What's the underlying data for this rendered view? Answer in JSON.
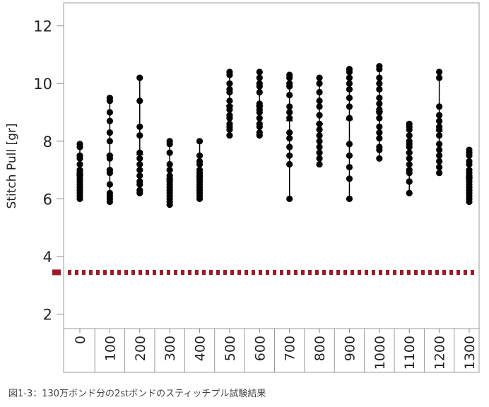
{
  "chart_data": {
    "type": "scatter",
    "ylabel": "Stitch Pull [gr]",
    "xlabel": "",
    "ylim": [
      1.5,
      12.8
    ],
    "yticks": [
      2,
      4,
      6,
      8,
      10,
      12
    ],
    "grid": false,
    "categories": [
      "0",
      "100",
      "200",
      "300",
      "400",
      "500",
      "600",
      "700",
      "800",
      "900",
      "1000",
      "1100",
      "1200",
      "1300"
    ],
    "points": [
      [
        7.9,
        7.8,
        7.5,
        7.4,
        7.2,
        7.0,
        6.9,
        6.8,
        6.7,
        6.6,
        6.5,
        6.4,
        6.3,
        6.2,
        6.1,
        6.0
      ],
      [
        9.5,
        9.4,
        9.0,
        8.7,
        8.3,
        8.0,
        7.5,
        7.4,
        7.0,
        6.9,
        6.5,
        6.2,
        6.1,
        6.0,
        5.9
      ],
      [
        10.2,
        9.4,
        8.5,
        8.2,
        7.6,
        7.4,
        7.2,
        7.0,
        6.8,
        6.6,
        6.5,
        6.3,
        6.2
      ],
      [
        8.0,
        7.9,
        7.6,
        7.2,
        7.0,
        6.8,
        6.7,
        6.6,
        6.5,
        6.4,
        6.3,
        6.2,
        6.1,
        6.0,
        5.9,
        5.8
      ],
      [
        8.0,
        7.5,
        7.3,
        7.2,
        7.0,
        6.9,
        6.8,
        6.7,
        6.6,
        6.5,
        6.4,
        6.3,
        6.2,
        6.1,
        6.0
      ],
      [
        10.4,
        10.3,
        10.0,
        9.8,
        9.7,
        9.4,
        9.2,
        9.1,
        8.9,
        8.8,
        8.6,
        8.5,
        8.4,
        8.2
      ],
      [
        10.4,
        10.2,
        10.0,
        9.9,
        9.7,
        9.3,
        9.2,
        9.1,
        9.0,
        8.8,
        8.6,
        8.5,
        8.3,
        8.2
      ],
      [
        10.3,
        10.2,
        10.0,
        9.9,
        9.6,
        9.2,
        9.0,
        8.8,
        8.3,
        8.1,
        7.8,
        7.5,
        7.2,
        6.0
      ],
      [
        10.2,
        10.0,
        9.7,
        9.4,
        9.2,
        8.9,
        8.6,
        8.4,
        8.2,
        8.0,
        7.8,
        7.6,
        7.4,
        7.2
      ],
      [
        10.5,
        10.4,
        10.2,
        10.0,
        9.8,
        9.5,
        9.2,
        8.8,
        7.9,
        7.5,
        7.1,
        6.7,
        6.0
      ],
      [
        10.6,
        10.5,
        10.2,
        10.0,
        9.8,
        9.5,
        9.3,
        9.1,
        9.0,
        8.8,
        8.5,
        8.3,
        8.1,
        7.8,
        7.7,
        7.4
      ],
      [
        8.6,
        8.5,
        8.4,
        8.2,
        8.0,
        7.9,
        7.8,
        7.6,
        7.4,
        7.2,
        7.0,
        6.9,
        6.6,
        6.2
      ],
      [
        10.4,
        10.2,
        9.2,
        8.9,
        8.7,
        8.5,
        8.4,
        8.2,
        7.9,
        7.7,
        7.5,
        7.3,
        7.1,
        6.9
      ],
      [
        7.7,
        7.6,
        7.5,
        7.3,
        7.2,
        7.0,
        6.9,
        6.8,
        6.7,
        6.6,
        6.5,
        6.4,
        6.3,
        6.2,
        6.1,
        6.0,
        5.9
      ]
    ],
    "reference_line": {
      "y": 3.45,
      "color": "#9b1b2a",
      "style": "dashed"
    },
    "colors": {
      "points": "#000000",
      "reference": "#9b1b2a",
      "axis": "#888888",
      "text": "#222222"
    }
  },
  "caption": "図1-3：130万ボンド分の2stボンドのスティッチプル試験結果"
}
